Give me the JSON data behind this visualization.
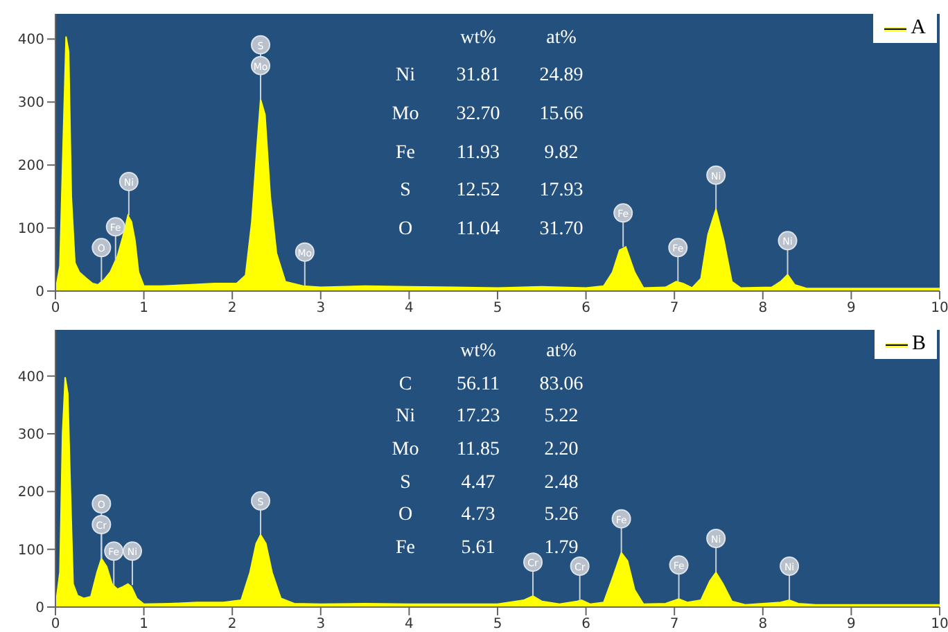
{
  "chart_data": [
    {
      "type": "area",
      "xlim": [
        0,
        10
      ],
      "xticks": [
        0,
        1,
        2,
        3,
        4,
        5,
        6,
        7,
        8,
        9,
        10
      ],
      "ylim": [
        0,
        440
      ],
      "yticks": [
        0,
        100,
        200,
        300,
        400
      ],
      "legend": "top right",
      "series": [
        {
          "name": "A",
          "color": "#ffff00",
          "x": [
            0,
            0.05,
            0.09,
            0.12,
            0.15,
            0.18,
            0.22,
            0.27,
            0.35,
            0.42,
            0.48,
            0.55,
            0.62,
            0.7,
            0.76,
            0.82,
            0.86,
            0.9,
            0.94,
            1.0,
            1.2,
            1.5,
            1.8,
            2.05,
            2.15,
            2.22,
            2.28,
            2.32,
            2.37,
            2.43,
            2.5,
            2.6,
            2.8,
            3.0,
            3.5,
            4.0,
            4.5,
            5.0,
            5.5,
            6.0,
            6.2,
            6.3,
            6.38,
            6.45,
            6.55,
            6.65,
            6.9,
            7.02,
            7.1,
            7.2,
            7.3,
            7.38,
            7.47,
            7.56,
            7.65,
            7.75,
            8.1,
            8.2,
            8.28,
            8.36,
            8.5,
            9.0,
            10
          ],
          "values": [
            0,
            40,
            250,
            404,
            380,
            150,
            45,
            30,
            20,
            12,
            10,
            18,
            30,
            55,
            85,
            120,
            110,
            80,
            30,
            8,
            8,
            10,
            12,
            12,
            25,
            110,
            230,
            304,
            280,
            150,
            60,
            15,
            8,
            6,
            8,
            7,
            6,
            5,
            7,
            5,
            8,
            30,
            65,
            70,
            30,
            5,
            6,
            15,
            12,
            5,
            20,
            90,
            130,
            80,
            15,
            5,
            6,
            15,
            26,
            10,
            4,
            4,
            4
          ]
        }
      ],
      "annotations": [
        {
          "text": "S",
          "x": 2.32,
          "y": 304
        },
        {
          "text": "Mo",
          "x": 2.32,
          "y": 304
        },
        {
          "text": "Ni",
          "x": 0.83,
          "y": 120
        },
        {
          "text": "Fe",
          "x": 0.68,
          "y": 48
        },
        {
          "text": "O",
          "x": 0.52,
          "y": 15
        },
        {
          "text": "Mo",
          "x": 2.82,
          "y": 8
        },
        {
          "text": "Fe",
          "x": 6.42,
          "y": 70
        },
        {
          "text": "Fe",
          "x": 7.04,
          "y": 15
        },
        {
          "text": "Ni",
          "x": 7.47,
          "y": 130
        },
        {
          "text": "Ni",
          "x": 8.28,
          "y": 26
        },
        "wt%",
        "at%",
        "Ni",
        "31.81",
        "24.89",
        "Mo",
        "32.70",
        "15.66",
        "Fe",
        "11.93",
        "9.82",
        "S",
        "12.52",
        "17.93",
        "O",
        "11.04",
        "31.70"
      ]
    },
    {
      "type": "area",
      "xlim": [
        0,
        10
      ],
      "xticks": [
        0,
        1,
        2,
        3,
        4,
        5,
        6,
        7,
        8,
        9,
        10
      ],
      "ylim": [
        0,
        480
      ],
      "yticks": [
        0,
        100,
        200,
        300,
        400
      ],
      "legend": "top right",
      "series": [
        {
          "name": "B",
          "color": "#ffff00",
          "x": [
            0,
            0.05,
            0.08,
            0.11,
            0.14,
            0.17,
            0.2,
            0.25,
            0.32,
            0.4,
            0.47,
            0.52,
            0.58,
            0.64,
            0.7,
            0.76,
            0.82,
            0.86,
            0.92,
            1.0,
            1.3,
            1.6,
            1.9,
            2.1,
            2.2,
            2.27,
            2.32,
            2.38,
            2.45,
            2.55,
            2.7,
            3.0,
            3.5,
            4.0,
            4.5,
            5.0,
            5.3,
            5.4,
            5.5,
            5.7,
            5.9,
            5.95,
            6.05,
            6.2,
            6.3,
            6.4,
            6.47,
            6.55,
            6.65,
            6.9,
            7.05,
            7.15,
            7.3,
            7.4,
            7.47,
            7.55,
            7.65,
            7.8,
            8.2,
            8.3,
            8.4,
            8.6,
            9.0,
            10
          ],
          "values": [
            0,
            60,
            300,
            398,
            370,
            200,
            40,
            20,
            15,
            18,
            60,
            84,
            70,
            40,
            31,
            35,
            40,
            35,
            15,
            5,
            6,
            8,
            8,
            12,
            60,
            110,
            125,
            110,
            60,
            15,
            6,
            5,
            6,
            5,
            5,
            5,
            12,
            19,
            10,
            5,
            10,
            12,
            5,
            8,
            50,
            94,
            80,
            30,
            5,
            6,
            14,
            8,
            12,
            45,
            60,
            40,
            10,
            4,
            8,
            12,
            6,
            4,
            4,
            4
          ]
        }
      ],
      "annotations": [
        {
          "text": "O",
          "x": 0.52,
          "y": 84
        },
        {
          "text": "Cr",
          "x": 0.52,
          "y": 84
        },
        {
          "text": "Ni",
          "x": 0.87,
          "y": 38
        },
        {
          "text": "Fe",
          "x": 0.66,
          "y": 38
        },
        {
          "text": "S",
          "x": 2.32,
          "y": 125
        },
        {
          "text": "Cr",
          "x": 5.4,
          "y": 19
        },
        {
          "text": "Cr",
          "x": 5.93,
          "y": 12
        },
        {
          "text": "Fe",
          "x": 6.4,
          "y": 94
        },
        {
          "text": "Fe",
          "x": 7.05,
          "y": 14
        },
        {
          "text": "Ni",
          "x": 7.47,
          "y": 60
        },
        {
          "text": "Ni",
          "x": 8.3,
          "y": 12
        },
        "wt%",
        "at%",
        "C",
        "56.11",
        "83.06",
        "Ni",
        "17.23",
        "5.22",
        "Mo",
        "11.85",
        "2.20",
        "S",
        "4.47",
        "2.48",
        "O",
        "4.73",
        "5.26",
        "Fe",
        "5.61",
        "1.79"
      ]
    }
  ]
}
